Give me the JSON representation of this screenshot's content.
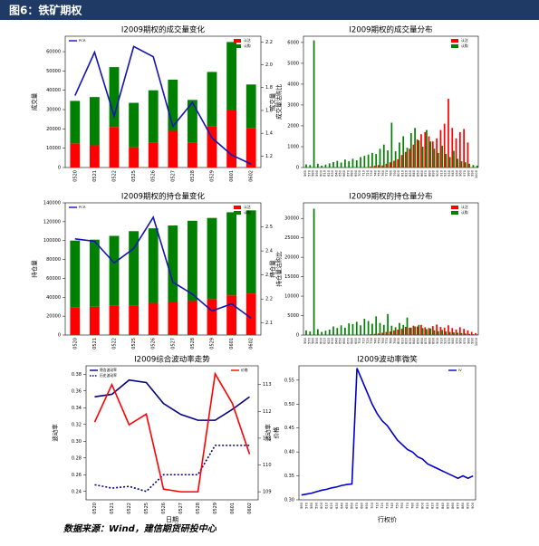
{
  "header": {
    "title": "图6：铁矿期权"
  },
  "source": "数据来源：Wind，建信期货研投中心",
  "chart_data": [
    {
      "type": "bar",
      "stacked": true,
      "title": "I2009期权的成交量变化",
      "y_label": "成交量",
      "y2_label": "成交量沽购比",
      "legend": "upper right",
      "legend2": "upper left",
      "categories": [
        "0520",
        "0521",
        "0522",
        "0525",
        "0526",
        "0527",
        "0528",
        "0529",
        "0601",
        "0602"
      ],
      "ylim": [
        0,
        68000
      ],
      "yticks": [
        0,
        10000,
        20000,
        30000,
        40000,
        50000,
        60000
      ],
      "y2lim": [
        1.1,
        2.25
      ],
      "y2ticks": [
        1.2,
        1.4,
        1.6,
        1.8,
        {
          "value": 2,
          "label": "2.0"
        },
        2.2
      ],
      "series": [
        {
          "name": "认沽",
          "color": "#ff0000",
          "values": [
            12500,
            11500,
            21000,
            10500,
            13000,
            19000,
            13000,
            21500,
            30000,
            20500
          ]
        },
        {
          "name": "认购",
          "color": "#008000",
          "values": [
            22000,
            25000,
            31000,
            23000,
            27000,
            26500,
            22000,
            28000,
            35000,
            22500
          ]
        },
        {
          "name": "PCR",
          "type": "line",
          "axis": "y2",
          "color": "#1414b4",
          "values": [
            1.73,
            2.11,
            1.55,
            2.16,
            2.07,
            1.46,
            1.67,
            1.36,
            1.21,
            1.13
          ]
        }
      ]
    },
    {
      "type": "bar",
      "stacked": false,
      "title": "I2009期权的成交量分布",
      "y_label": "成交量",
      "legend": "upper right",
      "categories": [
        560,
        570,
        580,
        590,
        600,
        610,
        620,
        630,
        640,
        650,
        660,
        670,
        680,
        690,
        700,
        710,
        720,
        730,
        740,
        750,
        760,
        770,
        780,
        790,
        800,
        810,
        820,
        830,
        840,
        850,
        860,
        870,
        880,
        890,
        900,
        910,
        920,
        930,
        940,
        950,
        960,
        970,
        980,
        990,
        1000
      ],
      "ylim": [
        0,
        6300
      ],
      "yticks": [
        0,
        1000,
        2000,
        3000,
        4000,
        5000,
        6000
      ],
      "series": [
        {
          "name": "认沽",
          "color": "#ff0000",
          "values": [
            0,
            0,
            0,
            0,
            0,
            0,
            0,
            0,
            0,
            0,
            0,
            0,
            0,
            0,
            0,
            0,
            0,
            50,
            80,
            120,
            100,
            180,
            250,
            320,
            400,
            600,
            750,
            900,
            1100,
            1350,
            1600,
            1700,
            1500,
            1250,
            1400,
            1800,
            2100,
            3300,
            1900,
            1400,
            1700,
            1850,
            1200,
            0,
            0
          ]
        },
        {
          "name": "认购",
          "color": "#008000",
          "values": [
            150,
            120,
            6100,
            180,
            90,
            140,
            200,
            260,
            320,
            240,
            380,
            300,
            420,
            350,
            500,
            560,
            620,
            700,
            650,
            900,
            1100,
            820,
            2150,
            780,
            1200,
            1500,
            950,
            1650,
            1900,
            1300,
            1000,
            1800,
            1250,
            900,
            700,
            1050,
            650,
            500,
            800,
            420,
            300,
            250,
            180,
            120,
            90
          ]
        }
      ]
    },
    {
      "type": "bar",
      "stacked": true,
      "title": "I2009期权的持仓量变化",
      "y_label": "持仓量",
      "y2_label": "持仓量沽购比",
      "legend": "upper right",
      "legend2": "upper left",
      "categories": [
        "0520",
        "0521",
        "0522",
        "0525",
        "0526",
        "0527",
        "0528",
        "0529",
        "0601",
        "0602"
      ],
      "ylim": [
        0,
        140000
      ],
      "yticks": [
        0,
        20000,
        40000,
        60000,
        80000,
        100000,
        120000,
        140000
      ],
      "y2lim": [
        2.05,
        2.6
      ],
      "y2ticks": [
        2.1,
        2.2,
        2.3,
        2.4,
        2.5
      ],
      "series": [
        {
          "name": "认沽",
          "color": "#ff0000",
          "values": [
            29000,
            30000,
            31000,
            31000,
            34000,
            35000,
            36000,
            38000,
            42000,
            44000
          ]
        },
        {
          "name": "认购",
          "color": "#008000",
          "values": [
            71000,
            71000,
            74000,
            79000,
            79000,
            81000,
            85000,
            86000,
            88000,
            88000
          ]
        },
        {
          "name": "PCR",
          "type": "line",
          "axis": "y2",
          "color": "#1414b4",
          "values": [
            2.45,
            2.44,
            2.35,
            2.41,
            2.54,
            2.27,
            2.22,
            2.15,
            2.18,
            2.12
          ]
        }
      ]
    },
    {
      "type": "bar",
      "stacked": false,
      "title": "I2009期权的持仓量分布",
      "y_label": "持仓量",
      "legend": "upper right",
      "categories": [
        560,
        570,
        580,
        590,
        600,
        610,
        620,
        630,
        640,
        650,
        660,
        670,
        680,
        690,
        700,
        710,
        720,
        730,
        740,
        750,
        760,
        770,
        780,
        790,
        800,
        810,
        820,
        830,
        840,
        850,
        860,
        870,
        880,
        890,
        900,
        910,
        920,
        930,
        940,
        950,
        960,
        970,
        980,
        990,
        1000
      ],
      "ylim": [
        0,
        34000
      ],
      "yticks": [
        0,
        5000,
        10000,
        15000,
        20000,
        25000,
        30000
      ],
      "series": [
        {
          "name": "认沽",
          "color": "#ff0000",
          "values": [
            0,
            0,
            0,
            0,
            0,
            0,
            0,
            0,
            0,
            0,
            0,
            0,
            0,
            0,
            0,
            0,
            100,
            200,
            300,
            400,
            600,
            800,
            900,
            1200,
            1400,
            1600,
            2100,
            1900,
            2400,
            2200,
            2600,
            2000,
            1800,
            2300,
            2700,
            2100,
            1900,
            2500,
            1800,
            1400,
            2000,
            1600,
            1200,
            800,
            500
          ]
        },
        {
          "name": "认购",
          "color": "#008000",
          "values": [
            1200,
            900,
            32500,
            1500,
            800,
            1100,
            1400,
            2200,
            1800,
            2500,
            1900,
            3000,
            2800,
            3400,
            2500,
            4200,
            3600,
            2900,
            4800,
            3100,
            2600,
            5400,
            2400,
            2000,
            3100,
            2600,
            4500,
            1900,
            2200,
            2600,
            1800,
            1500,
            1700,
            1200,
            1000,
            1300,
            900,
            800,
            700,
            600,
            500,
            400,
            300,
            200,
            150
          ]
        }
      ]
    },
    {
      "type": "line",
      "title": "I2009综合波动率走势",
      "y_label": "波动率",
      "y2_label": "价格",
      "x_label": "日期",
      "legend": "upper left",
      "legend2": "upper right",
      "categories": [
        "0520",
        "0521",
        "0522",
        "0525",
        "0526",
        "0527",
        "0528",
        "0529",
        "0601",
        "0602"
      ],
      "ylim": [
        0.23,
        0.39
      ],
      "yticks": [
        0.24,
        0.26,
        0.28,
        {
          "value": 0.3,
          "label": "0.30"
        },
        0.32,
        0.34,
        0.36,
        0.38
      ],
      "y2lim": [
        108.7,
        113.7
      ],
      "y2ticks": [
        109,
        110,
        111,
        112,
        113
      ],
      "series": [
        {
          "name": "隐含波动率",
          "color": "#000080",
          "values": [
            0.353,
            0.356,
            0.373,
            0.37,
            0.345,
            0.332,
            0.325,
            0.325,
            0.338,
            0.353
          ]
        },
        {
          "name": "历史波动率",
          "color": "#000080",
          "dash": true,
          "values": [
            0.248,
            0.244,
            0.246,
            0.24,
            0.26,
            0.26,
            0.26,
            0.295,
            0.295,
            0.295
          ]
        },
        {
          "name": "价格",
          "color": "#ff0000",
          "axis": "y2",
          "values": [
            111.6,
            113,
            111.5,
            111.9,
            109.1,
            109,
            109,
            113.4,
            112.3,
            110.4
          ]
        }
      ]
    },
    {
      "type": "line",
      "title": "I2009波动率微笑",
      "y_label": "波动率",
      "x_label": "行权价",
      "legend": "upper right",
      "categories": [
        560,
        570,
        580,
        590,
        600,
        610,
        620,
        630,
        640,
        650,
        660,
        670,
        680,
        690,
        700,
        710,
        720,
        730,
        740,
        750,
        760,
        770,
        780,
        790,
        800,
        810,
        820,
        830,
        840,
        850,
        860,
        870,
        880,
        890,
        900
      ],
      "ylim": [
        0.3,
        0.58
      ],
      "yticks": [
        {
          "value": 0.3,
          "label": "0.30"
        },
        0.35,
        {
          "value": 0.4,
          "label": "0.40"
        },
        0.45,
        {
          "value": 0.5,
          "label": "0.50"
        },
        0.55
      ],
      "series": [
        {
          "name": "IV",
          "color": "#0000cd",
          "values": [
            0.31,
            0.312,
            0.314,
            0.317,
            0.32,
            0.322,
            0.325,
            0.327,
            0.33,
            0.332,
            0.333,
            0.575,
            0.55,
            0.525,
            0.5,
            0.48,
            0.465,
            0.455,
            0.44,
            0.425,
            0.415,
            0.405,
            0.4,
            0.39,
            0.385,
            0.375,
            0.37,
            0.365,
            0.36,
            0.355,
            0.35,
            0.345,
            0.35,
            0.345,
            0.35
          ]
        }
      ]
    }
  ]
}
